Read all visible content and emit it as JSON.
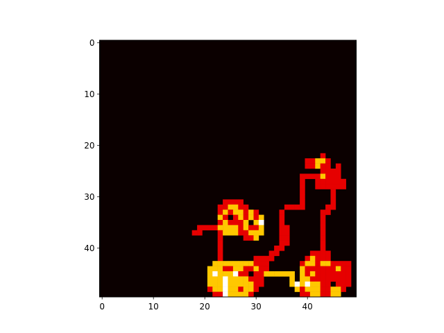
{
  "chart_data": {
    "type": "heatmap",
    "title": "",
    "xlabel": "",
    "ylabel": "",
    "grid": false,
    "colormap": "hot",
    "xlim": [
      -0.5,
      49.5
    ],
    "ylim": [
      49.5,
      -0.5
    ],
    "x_ticks": [
      0,
      10,
      20,
      30,
      40
    ],
    "y_ticks": [
      0,
      10,
      20,
      30,
      40
    ],
    "x_tick_labels": [
      "0",
      "10",
      "20",
      "30",
      "40"
    ],
    "y_tick_labels": [
      "0",
      "10",
      "20",
      "30",
      "40"
    ],
    "value_scale": {
      "0": "background (near-black)",
      "1": "red",
      "2": "yellow",
      "3": "white"
    },
    "background_value": 0,
    "colors": {
      "0": "#0b0000",
      "1": "#e60000",
      "2": "#ffc800",
      "3": "#ffffff"
    },
    "size": [
      50,
      50
    ],
    "rows": [
      {
        "y": 22,
        "segments": [
          [
            43,
            43,
            1
          ]
        ]
      },
      {
        "y": 23,
        "segments": [
          [
            40,
            41,
            1
          ],
          [
            42,
            43,
            2
          ],
          [
            44,
            44,
            1
          ]
        ]
      },
      {
        "y": 24,
        "segments": [
          [
            40,
            41,
            1
          ],
          [
            42,
            42,
            2
          ],
          [
            43,
            44,
            1
          ],
          [
            46,
            46,
            1
          ]
        ]
      },
      {
        "y": 25,
        "segments": [
          [
            43,
            45,
            1
          ],
          [
            46,
            46,
            1
          ]
        ]
      },
      {
        "y": 26,
        "segments": [
          [
            39,
            39,
            1
          ],
          [
            40,
            42,
            1
          ],
          [
            43,
            43,
            2
          ],
          [
            44,
            44,
            1
          ],
          [
            45,
            45,
            1
          ],
          [
            46,
            46,
            1
          ]
        ]
      },
      {
        "y": 27,
        "segments": [
          [
            39,
            39,
            1
          ],
          [
            42,
            47,
            1
          ]
        ]
      },
      {
        "y": 28,
        "segments": [
          [
            39,
            39,
            1
          ],
          [
            42,
            47,
            1
          ]
        ]
      },
      {
        "y": 29,
        "segments": [
          [
            39,
            39,
            1
          ],
          [
            45,
            45,
            1
          ]
        ]
      },
      {
        "y": 30,
        "segments": [
          [
            39,
            39,
            1
          ],
          [
            45,
            45,
            1
          ]
        ]
      },
      {
        "y": 31,
        "segments": [
          [
            24,
            27,
            1
          ],
          [
            39,
            39,
            1
          ],
          [
            45,
            45,
            1
          ]
        ]
      },
      {
        "y": 32,
        "segments": [
          [
            23,
            24,
            1
          ],
          [
            25,
            26,
            2
          ],
          [
            27,
            28,
            1
          ],
          [
            36,
            39,
            1
          ],
          [
            44,
            45,
            1
          ]
        ]
      },
      {
        "y": 33,
        "segments": [
          [
            23,
            23,
            1
          ],
          [
            24,
            24,
            2
          ],
          [
            25,
            25,
            1
          ],
          [
            26,
            27,
            2
          ],
          [
            28,
            28,
            1
          ],
          [
            29,
            29,
            2
          ],
          [
            30,
            30,
            1
          ],
          [
            35,
            35,
            1
          ],
          [
            43,
            44,
            1
          ]
        ]
      },
      {
        "y": 34,
        "segments": [
          [
            23,
            23,
            2
          ],
          [
            24,
            24,
            1
          ],
          [
            26,
            26,
            1
          ],
          [
            27,
            27,
            2
          ],
          [
            28,
            28,
            1
          ],
          [
            29,
            29,
            2
          ],
          [
            30,
            30,
            1
          ],
          [
            31,
            31,
            2
          ],
          [
            35,
            35,
            1
          ],
          [
            43,
            43,
            1
          ]
        ]
      },
      {
        "y": 35,
        "segments": [
          [
            23,
            23,
            1
          ],
          [
            24,
            24,
            2
          ],
          [
            25,
            27,
            1
          ],
          [
            28,
            28,
            2
          ],
          [
            29,
            29,
            0
          ],
          [
            30,
            30,
            2
          ],
          [
            31,
            31,
            3
          ],
          [
            35,
            35,
            1
          ],
          [
            43,
            43,
            1
          ]
        ]
      },
      {
        "y": 36,
        "segments": [
          [
            19,
            22,
            1
          ],
          [
            23,
            26,
            2
          ],
          [
            27,
            27,
            1
          ],
          [
            28,
            28,
            2
          ],
          [
            29,
            30,
            1
          ],
          [
            31,
            31,
            2
          ],
          [
            35,
            35,
            1
          ],
          [
            36,
            36,
            1
          ],
          [
            43,
            43,
            1
          ]
        ]
      },
      {
        "y": 37,
        "segments": [
          [
            18,
            19,
            1
          ],
          [
            23,
            23,
            1
          ],
          [
            24,
            26,
            2
          ],
          [
            27,
            28,
            1
          ],
          [
            29,
            30,
            2
          ],
          [
            31,
            31,
            2
          ],
          [
            35,
            36,
            1
          ],
          [
            43,
            43,
            1
          ]
        ]
      },
      {
        "y": 38,
        "segments": [
          [
            23,
            23,
            1
          ],
          [
            28,
            29,
            1
          ],
          [
            30,
            30,
            2
          ],
          [
            35,
            36,
            1
          ],
          [
            43,
            43,
            1
          ]
        ]
      },
      {
        "y": 39,
        "segments": [
          [
            23,
            23,
            1
          ],
          [
            35,
            36,
            1
          ],
          [
            43,
            43,
            1
          ]
        ]
      },
      {
        "y": 40,
        "segments": [
          [
            23,
            23,
            1
          ],
          [
            34,
            35,
            1
          ],
          [
            43,
            43,
            1
          ]
        ]
      },
      {
        "y": 41,
        "segments": [
          [
            23,
            23,
            1
          ],
          [
            33,
            34,
            1
          ],
          [
            41,
            43,
            1
          ],
          [
            44,
            44,
            1
          ]
        ]
      },
      {
        "y": 42,
        "segments": [
          [
            23,
            23,
            1
          ],
          [
            30,
            33,
            1
          ],
          [
            40,
            40,
            1
          ],
          [
            41,
            41,
            2
          ],
          [
            42,
            44,
            1
          ]
        ]
      },
      {
        "y": 43,
        "segments": [
          [
            22,
            22,
            2
          ],
          [
            23,
            29,
            2
          ],
          [
            30,
            32,
            1
          ],
          [
            39,
            39,
            1
          ],
          [
            40,
            41,
            2
          ],
          [
            42,
            42,
            1
          ],
          [
            43,
            44,
            2
          ],
          [
            45,
            48,
            1
          ]
        ]
      },
      {
        "y": 44,
        "segments": [
          [
            21,
            22,
            2
          ],
          [
            23,
            23,
            2
          ],
          [
            24,
            24,
            1
          ],
          [
            25,
            25,
            1
          ],
          [
            26,
            27,
            2
          ],
          [
            28,
            29,
            1
          ],
          [
            30,
            30,
            2
          ],
          [
            31,
            32,
            1
          ],
          [
            39,
            39,
            2
          ],
          [
            40,
            40,
            1
          ],
          [
            41,
            42,
            1
          ],
          [
            43,
            43,
            1
          ],
          [
            44,
            44,
            1
          ],
          [
            45,
            45,
            1
          ],
          [
            46,
            46,
            2
          ],
          [
            47,
            48,
            1
          ]
        ]
      },
      {
        "y": 45,
        "segments": [
          [
            21,
            21,
            2
          ],
          [
            22,
            22,
            3
          ],
          [
            23,
            25,
            2
          ],
          [
            26,
            26,
            3
          ],
          [
            27,
            27,
            1
          ],
          [
            28,
            28,
            1
          ],
          [
            29,
            29,
            0
          ],
          [
            30,
            31,
            1
          ],
          [
            32,
            32,
            2
          ],
          [
            33,
            37,
            2
          ],
          [
            39,
            39,
            2
          ],
          [
            40,
            40,
            1
          ],
          [
            41,
            41,
            2
          ],
          [
            42,
            43,
            1
          ],
          [
            44,
            48,
            1
          ]
        ]
      },
      {
        "y": 46,
        "segments": [
          [
            21,
            23,
            2
          ],
          [
            24,
            24,
            3
          ],
          [
            25,
            28,
            2
          ],
          [
            29,
            29,
            1
          ],
          [
            30,
            31,
            1
          ],
          [
            37,
            37,
            2
          ],
          [
            39,
            40,
            2
          ],
          [
            41,
            42,
            1
          ],
          [
            43,
            44,
            1
          ],
          [
            45,
            45,
            1
          ],
          [
            46,
            48,
            1
          ]
        ]
      },
      {
        "y": 47,
        "segments": [
          [
            21,
            23,
            2
          ],
          [
            24,
            24,
            3
          ],
          [
            25,
            29,
            2
          ],
          [
            30,
            31,
            1
          ],
          [
            37,
            37,
            2
          ],
          [
            38,
            38,
            3
          ],
          [
            39,
            39,
            2
          ],
          [
            40,
            40,
            3
          ],
          [
            41,
            42,
            2
          ],
          [
            43,
            44,
            1
          ],
          [
            45,
            45,
            0
          ],
          [
            46,
            48,
            1
          ]
        ]
      },
      {
        "y": 48,
        "segments": [
          [
            21,
            21,
            1
          ],
          [
            22,
            23,
            2
          ],
          [
            24,
            24,
            3
          ],
          [
            25,
            26,
            2
          ],
          [
            27,
            27,
            1
          ],
          [
            28,
            29,
            2
          ],
          [
            30,
            30,
            1
          ],
          [
            38,
            38,
            2
          ],
          [
            39,
            39,
            1
          ],
          [
            40,
            42,
            2
          ],
          [
            43,
            44,
            1
          ],
          [
            45,
            46,
            2
          ],
          [
            47,
            47,
            1
          ]
        ]
      },
      {
        "y": 49,
        "segments": [
          [
            22,
            23,
            1
          ],
          [
            24,
            24,
            3
          ],
          [
            25,
            28,
            2
          ],
          [
            29,
            29,
            1
          ],
          [
            39,
            40,
            1
          ],
          [
            41,
            42,
            2
          ],
          [
            43,
            44,
            1
          ],
          [
            45,
            46,
            2
          ]
        ]
      }
    ]
  }
}
